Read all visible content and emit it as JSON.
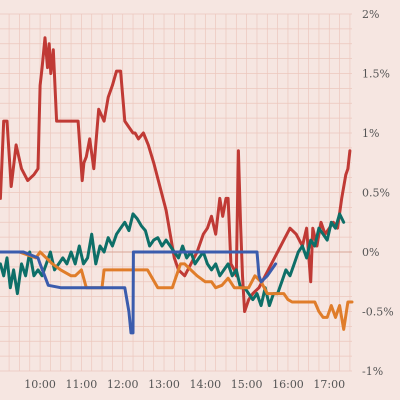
{
  "chart_data": {
    "type": "line",
    "title": "",
    "xlabel": "",
    "ylabel": "",
    "x_unit": "hours since midnight",
    "xlim": [
      9.03,
      17.55
    ],
    "ylim": [
      -1.0,
      2.0
    ],
    "x_ticks": [
      {
        "value": 10,
        "label": "10:00"
      },
      {
        "value": 11,
        "label": "11:00"
      },
      {
        "value": 12,
        "label": "12:00"
      },
      {
        "value": 13,
        "label": "13:00"
      },
      {
        "value": 14,
        "label": "14:00"
      },
      {
        "value": 15,
        "label": "15:00"
      },
      {
        "value": 16,
        "label": "16:00"
      },
      {
        "value": 17,
        "label": "17:00"
      }
    ],
    "y_ticks": [
      {
        "value": 2.0,
        "label": "2%"
      },
      {
        "value": 1.5,
        "label": "1.5%"
      },
      {
        "value": 1.0,
        "label": "1%"
      },
      {
        "value": 0.5,
        "label": "0.5%"
      },
      {
        "value": 0.0,
        "label": "0%"
      },
      {
        "value": -0.5,
        "label": "-0.5%"
      },
      {
        "value": -1.0,
        "label": "-1%"
      }
    ],
    "grid": true,
    "colors": {
      "background": "#f6e6e1",
      "grid": "#ecc7bd",
      "zero_line": "#d8a597"
    },
    "series": [
      {
        "color": "#c03a35",
        "x": [
          9.04,
          9.12,
          9.2,
          9.3,
          9.42,
          9.55,
          9.7,
          9.85,
          9.95,
          10.0,
          10.05,
          10.12,
          10.18,
          10.22,
          10.26,
          10.32,
          10.4,
          10.5,
          10.6,
          10.7,
          10.8,
          10.92,
          11.02,
          11.06,
          11.12,
          11.2,
          11.3,
          11.42,
          11.55,
          11.65,
          11.75,
          11.85,
          11.95,
          12.05,
          12.15,
          12.25,
          12.3,
          12.38,
          12.5,
          12.62,
          12.75,
          12.9,
          13.05,
          13.15,
          13.25,
          13.35,
          13.5,
          13.65,
          13.8,
          13.95,
          14.05,
          14.15,
          14.25,
          14.35,
          14.42,
          14.5,
          14.55,
          14.62,
          14.7,
          14.75,
          14.8,
          14.85,
          14.9,
          14.95,
          15.05,
          15.15,
          15.3,
          15.45,
          15.6,
          15.75,
          15.9,
          16.05,
          16.2,
          16.35,
          16.45,
          16.55,
          16.6,
          16.7,
          16.8,
          16.9,
          17.0,
          17.1,
          17.2,
          17.3,
          17.4,
          17.45,
          17.5
        ],
        "y": [
          0.45,
          1.1,
          1.1,
          0.55,
          0.9,
          0.7,
          0.6,
          0.65,
          0.7,
          1.4,
          1.55,
          1.8,
          1.55,
          1.75,
          1.5,
          1.7,
          1.1,
          1.1,
          1.1,
          1.1,
          1.1,
          1.1,
          0.6,
          0.75,
          0.8,
          0.95,
          0.7,
          1.2,
          1.1,
          1.3,
          1.4,
          1.52,
          1.52,
          1.1,
          1.05,
          1.0,
          1.0,
          0.95,
          1.0,
          0.9,
          0.75,
          0.55,
          0.35,
          0.15,
          -0.05,
          -0.15,
          -0.2,
          -0.1,
          0.0,
          0.15,
          0.2,
          0.3,
          0.15,
          0.45,
          0.3,
          0.45,
          0.45,
          -0.1,
          -0.15,
          -0.2,
          0.85,
          0.25,
          -0.2,
          -0.5,
          -0.4,
          -0.35,
          -0.3,
          -0.2,
          -0.1,
          0.0,
          0.1,
          0.2,
          0.15,
          0.05,
          0.2,
          -0.25,
          0.2,
          0.05,
          0.25,
          0.15,
          0.2,
          0.25,
          0.2,
          0.45,
          0.65,
          0.7,
          0.85
        ]
      },
      {
        "color": "#0e6f68",
        "x": [
          9.04,
          9.12,
          9.2,
          9.28,
          9.36,
          9.45,
          9.55,
          9.65,
          9.75,
          9.85,
          9.95,
          10.05,
          10.15,
          10.25,
          10.35,
          10.45,
          10.55,
          10.65,
          10.75,
          10.85,
          10.95,
          11.05,
          11.15,
          11.25,
          11.35,
          11.45,
          11.55,
          11.65,
          11.75,
          11.85,
          11.95,
          12.05,
          12.15,
          12.25,
          12.35,
          12.45,
          12.55,
          12.65,
          12.75,
          12.85,
          12.95,
          13.05,
          13.15,
          13.25,
          13.35,
          13.45,
          13.55,
          13.65,
          13.75,
          13.85,
          13.95,
          14.05,
          14.15,
          14.25,
          14.35,
          14.45,
          14.55,
          14.65,
          14.75,
          14.85,
          14.95,
          15.05,
          15.15,
          15.25,
          15.35,
          15.45,
          15.55,
          15.65,
          15.75,
          15.85,
          15.95,
          16.05,
          16.15,
          16.25,
          16.35,
          16.45,
          16.55,
          16.65,
          16.75,
          16.85,
          16.95,
          17.05,
          17.15,
          17.25,
          17.35
        ],
        "y": [
          -0.1,
          -0.2,
          -0.05,
          -0.3,
          -0.15,
          -0.35,
          -0.1,
          -0.2,
          0.0,
          -0.2,
          -0.15,
          -0.2,
          -0.1,
          0.0,
          -0.15,
          -0.1,
          -0.05,
          -0.1,
          0.0,
          -0.1,
          0.05,
          -0.1,
          -0.05,
          0.15,
          -0.1,
          0.05,
          0.0,
          0.12,
          0.05,
          0.15,
          0.2,
          0.25,
          0.18,
          0.32,
          0.28,
          0.22,
          0.18,
          0.05,
          0.1,
          0.12,
          0.05,
          0.1,
          0.05,
          0.0,
          -0.05,
          0.05,
          -0.05,
          0.0,
          -0.1,
          -0.05,
          0.0,
          -0.1,
          -0.15,
          -0.1,
          -0.2,
          -0.15,
          -0.1,
          -0.2,
          -0.15,
          -0.3,
          -0.3,
          -0.35,
          -0.4,
          -0.35,
          -0.45,
          -0.3,
          -0.45,
          -0.35,
          -0.35,
          -0.25,
          -0.15,
          -0.2,
          -0.1,
          0.0,
          0.05,
          -0.05,
          0.1,
          0.05,
          0.2,
          0.15,
          0.1,
          0.25,
          0.2,
          0.32,
          0.25
        ]
      },
      {
        "color": "#e07d2a",
        "x": [
          9.04,
          9.5,
          9.9,
          10.0,
          10.3,
          10.5,
          10.75,
          10.85,
          11.0,
          11.12,
          11.3,
          11.5,
          11.55,
          11.75,
          12.0,
          12.15,
          12.2,
          12.4,
          12.6,
          12.85,
          12.95,
          13.2,
          13.4,
          13.5,
          13.65,
          13.8,
          14.0,
          14.15,
          14.25,
          14.4,
          14.55,
          14.7,
          14.85,
          14.95,
          15.05,
          15.2,
          15.35,
          15.5,
          15.7,
          15.9,
          16.0,
          16.1,
          16.2,
          16.4,
          16.55,
          16.65,
          16.75,
          16.85,
          16.95,
          17.05,
          17.15,
          17.25,
          17.35,
          17.45,
          17.55
        ],
        "y": [
          0.0,
          0.0,
          -0.05,
          0.0,
          -0.1,
          -0.15,
          -0.2,
          -0.2,
          -0.15,
          -0.3,
          -0.3,
          -0.3,
          -0.15,
          -0.15,
          -0.15,
          -0.15,
          -0.15,
          -0.15,
          -0.15,
          -0.3,
          -0.3,
          -0.3,
          -0.1,
          -0.1,
          -0.15,
          -0.2,
          -0.25,
          -0.25,
          -0.3,
          -0.28,
          -0.22,
          -0.3,
          -0.3,
          -0.3,
          -0.3,
          -0.2,
          -0.25,
          -0.35,
          -0.35,
          -0.35,
          -0.4,
          -0.42,
          -0.42,
          -0.42,
          -0.42,
          -0.42,
          -0.5,
          -0.55,
          -0.55,
          -0.45,
          -0.55,
          -0.45,
          -0.65,
          -0.42,
          -0.42
        ]
      },
      {
        "color": "#3b5cad",
        "x": [
          9.04,
          9.6,
          9.95,
          10.0,
          10.2,
          10.5,
          11.5,
          12.0,
          12.05,
          12.15,
          12.2,
          12.25,
          12.26,
          12.27,
          12.5,
          13.0,
          13.5,
          14.0,
          14.5,
          14.9,
          15.0,
          15.1,
          15.2,
          15.25,
          15.3,
          15.35,
          15.5,
          15.7
        ],
        "y": [
          0.0,
          0.0,
          -0.05,
          -0.1,
          -0.28,
          -0.3,
          -0.3,
          -0.3,
          -0.3,
          -0.5,
          -0.68,
          -0.68,
          0.0,
          0.0,
          0.0,
          0.0,
          0.0,
          0.0,
          0.0,
          0.0,
          0.0,
          0.0,
          0.0,
          0.0,
          -0.2,
          -0.25,
          -0.2,
          -0.1
        ]
      }
    ]
  }
}
